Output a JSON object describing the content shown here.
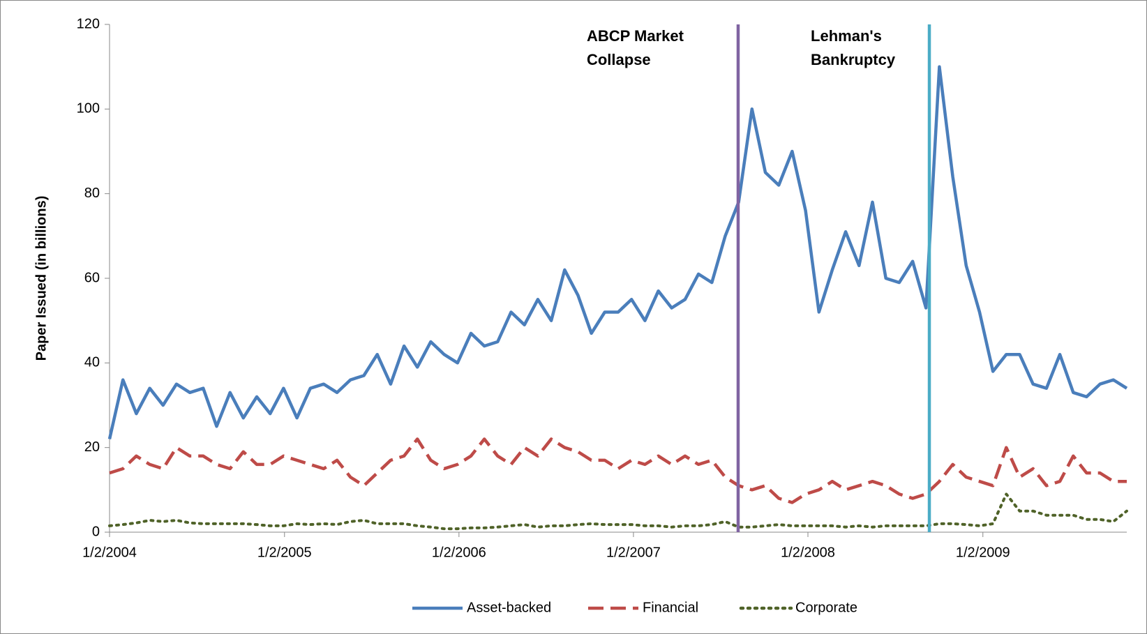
{
  "chart_data": {
    "type": "line",
    "ylabel": "Paper Issued (in billions)",
    "x": [
      "1/2/2004",
      "1/30/2004",
      "2/27/2004",
      "3/26/2004",
      "4/23/2004",
      "5/21/2004",
      "6/18/2004",
      "7/16/2004",
      "8/13/2004",
      "9/10/2004",
      "10/8/2004",
      "11/5/2004",
      "12/3/2004",
      "12/31/2004",
      "1/28/2005",
      "2/25/2005",
      "3/25/2005",
      "4/22/2005",
      "5/20/2005",
      "6/17/2005",
      "7/15/2005",
      "8/12/2005",
      "9/9/2005",
      "10/7/2005",
      "11/4/2005",
      "12/2/2005",
      "12/30/2005",
      "1/27/2006",
      "2/24/2006",
      "3/24/2006",
      "4/21/2006",
      "5/19/2006",
      "6/16/2006",
      "7/14/2006",
      "8/11/2006",
      "9/8/2006",
      "10/6/2006",
      "11/3/2006",
      "12/1/2006",
      "12/29/2006",
      "1/26/2007",
      "2/23/2007",
      "3/23/2007",
      "4/20/2007",
      "5/18/2007",
      "6/15/2007",
      "7/13/2007",
      "8/10/2007",
      "9/7/2007",
      "10/5/2007",
      "11/2/2007",
      "11/30/2007",
      "12/28/2007",
      "1/25/2008",
      "2/22/2008",
      "3/21/2008",
      "4/18/2008",
      "5/16/2008",
      "6/13/2008",
      "7/11/2008",
      "8/8/2008",
      "9/5/2008",
      "10/3/2008",
      "10/31/2008",
      "11/28/2008",
      "12/26/2008",
      "1/23/2009",
      "2/20/2009",
      "3/20/2009",
      "4/17/2009",
      "5/15/2009",
      "6/12/2009",
      "7/10/2009",
      "8/7/2009",
      "9/4/2009",
      "10/2/2009",
      "10/30/2009"
    ],
    "series": [
      {
        "name": "Asset-backed",
        "color": "#4a7ebb",
        "dash": "solid",
        "values": [
          22,
          36,
          28,
          34,
          30,
          35,
          33,
          34,
          25,
          33,
          27,
          32,
          28,
          34,
          27,
          34,
          35,
          33,
          36,
          37,
          42,
          35,
          44,
          39,
          45,
          42,
          40,
          47,
          44,
          45,
          52,
          49,
          55,
          50,
          62,
          56,
          47,
          52,
          52,
          55,
          50,
          57,
          53,
          55,
          61,
          59,
          70,
          78,
          100,
          85,
          82,
          90,
          76,
          52,
          62,
          71,
          63,
          78,
          60,
          59,
          64,
          53,
          110,
          84,
          63,
          52,
          38,
          42,
          42,
          35,
          34,
          42,
          33,
          32,
          35,
          36,
          34
        ]
      },
      {
        "name": "Financial",
        "color": "#be4b48",
        "dash": "dashed",
        "values": [
          14,
          15,
          18,
          16,
          15,
          20,
          18,
          18,
          16,
          15,
          19,
          16,
          16,
          18,
          17,
          16,
          15,
          17,
          13,
          11,
          14,
          17,
          18,
          22,
          17,
          15,
          16,
          18,
          22,
          18,
          16,
          20,
          18,
          22,
          20,
          19,
          17,
          17,
          15,
          17,
          16,
          18,
          16,
          18,
          16,
          17,
          13,
          11,
          10,
          11,
          8,
          7,
          9,
          10,
          12,
          10,
          11,
          12,
          11,
          9,
          8,
          9,
          12,
          16,
          13,
          12,
          11,
          20,
          13,
          15,
          11,
          12,
          18,
          14,
          14,
          12,
          12
        ]
      },
      {
        "name": "Corporate",
        "color": "#4f6228",
        "dash": "dotted",
        "values": [
          1.5,
          1.8,
          2.2,
          2.8,
          2.5,
          2.8,
          2.2,
          2,
          2,
          2,
          2,
          1.8,
          1.5,
          1.5,
          2,
          1.8,
          2,
          1.8,
          2.5,
          2.8,
          2,
          2,
          2,
          1.5,
          1.2,
          0.8,
          0.8,
          1,
          1,
          1.2,
          1.5,
          1.8,
          1.2,
          1.5,
          1.5,
          1.8,
          2,
          1.8,
          1.8,
          1.8,
          1.5,
          1.5,
          1.2,
          1.5,
          1.5,
          1.8,
          2.5,
          1.2,
          1.2,
          1.5,
          1.8,
          1.5,
          1.5,
          1.5,
          1.5,
          1.2,
          1.5,
          1.2,
          1.5,
          1.5,
          1.5,
          1.5,
          2,
          2,
          1.8,
          1.5,
          2,
          9,
          5,
          5,
          4,
          4,
          4,
          3,
          3,
          2.5,
          5
        ]
      }
    ],
    "events": [
      {
        "label": [
          "ABCP Market",
          "Collapse"
        ],
        "x": "8/9/2007",
        "color": "#8064a2"
      },
      {
        "label": [
          "Lehman's",
          "Bankruptcy"
        ],
        "x": "9/12/2008",
        "color": "#4bacc6"
      }
    ],
    "xlim": [
      "1/2/2004",
      "10/30/2009"
    ],
    "xticks": [
      "1/2/2004",
      "1/2/2005",
      "1/2/2006",
      "1/2/2007",
      "1/2/2008",
      "1/2/2009"
    ],
    "ylim": [
      0,
      120
    ],
    "yticks": [
      0,
      20,
      40,
      60,
      80,
      100,
      120
    ],
    "legend": "bottom"
  }
}
